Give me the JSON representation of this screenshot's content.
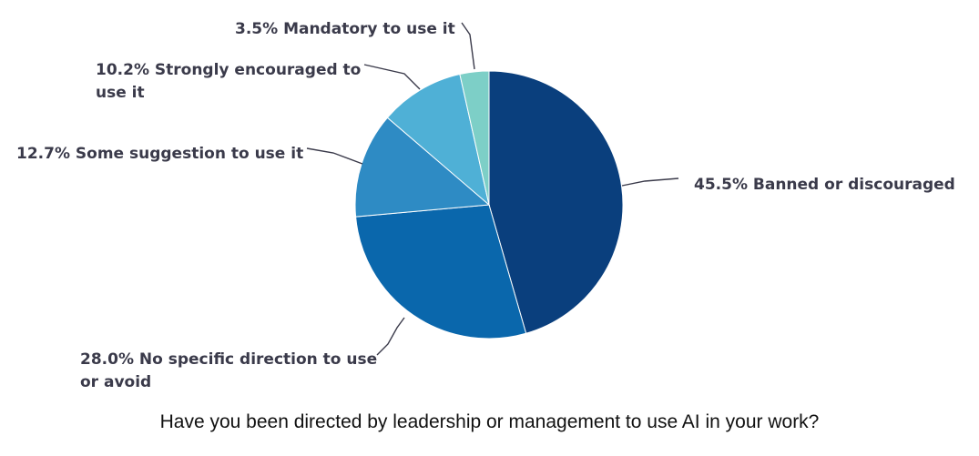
{
  "chart_data": {
    "type": "pie",
    "caption": "Have you been directed by leadership or management to use AI in your work?",
    "slices": [
      {
        "label": "45.5% Banned or discouraged",
        "value": 45.5,
        "color": "#0a3f7d"
      },
      {
        "label": "28.0% No specific direction to use or avoid",
        "value": 28.0,
        "color": "#0a67ac"
      },
      {
        "label": "12.7% Some suggestion to use it",
        "value": 12.7,
        "color": "#2e8bc4"
      },
      {
        "label": "10.2% Strongly encouraged to use it",
        "value": 10.2,
        "color": "#4fb0d6"
      },
      {
        "label": "3.5% Mandatory to use it",
        "value": 3.5,
        "color": "#7dcfc7"
      }
    ],
    "start": "12 o'clock",
    "direction": "clockwise",
    "legend": "none"
  }
}
